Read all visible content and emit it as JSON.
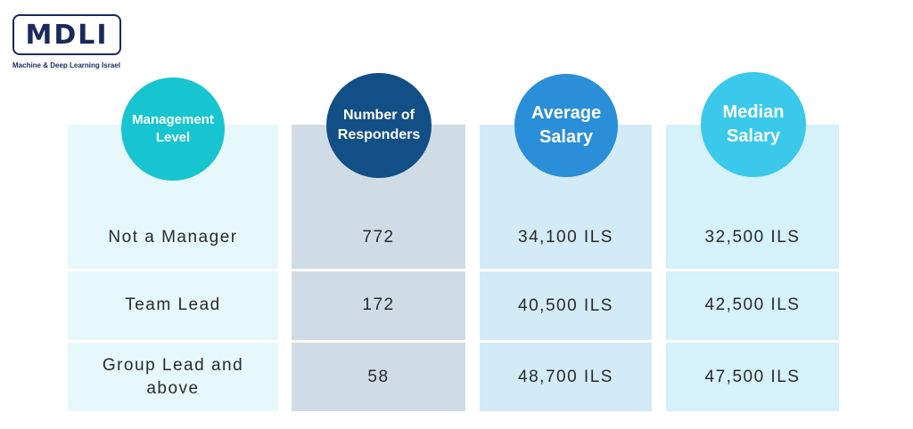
{
  "logo": {
    "text": "MDLI",
    "subtitle": "Machine & Deep Learning Israel"
  },
  "chart_data": {
    "type": "table",
    "columns": [
      "Management Level",
      "Number of Responders",
      "Average Salary",
      "Median Salary"
    ],
    "rows": [
      [
        "Not a Manager",
        "772",
        "34,100 ILS",
        "32,500 ILS"
      ],
      [
        "Team Lead",
        "172",
        "40,500 ILS",
        "42,500 ILS"
      ],
      [
        "Group Lead and above",
        "58",
        "48,700 ILS",
        "47,500 ILS"
      ]
    ],
    "header_colors": [
      "#17c5d0",
      "#124f86",
      "#2a8ed8",
      "#3ac9ea"
    ],
    "column_fill_colors": [
      "#e7f8fa",
      "#cfdce6",
      "#d3eaf7",
      "#d5f1f9"
    ]
  }
}
